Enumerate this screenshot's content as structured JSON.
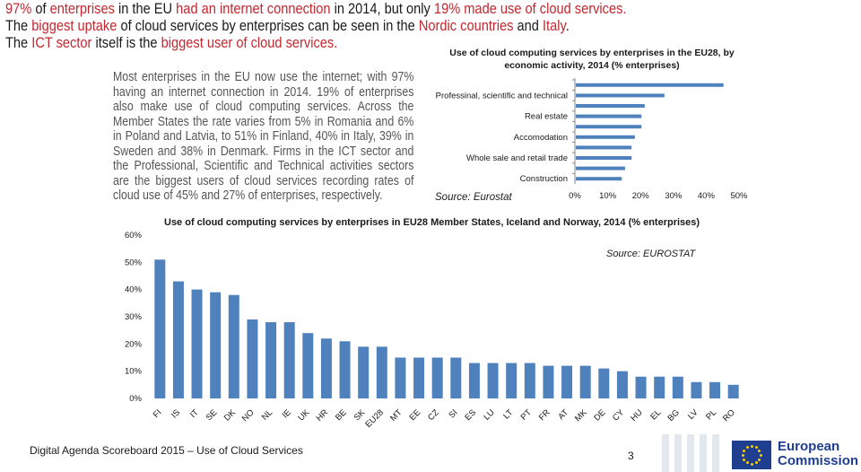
{
  "header": {
    "line1": [
      {
        "text": "97%",
        "highlight": true
      },
      {
        "text": " of ",
        "highlight": false
      },
      {
        "text": "enterprises",
        "highlight": true
      },
      {
        "text": " in the EU ",
        "highlight": false
      },
      {
        "text": "had an internet connection",
        "highlight": true
      },
      {
        "text": " in 2014, but only ",
        "highlight": false
      },
      {
        "text": "19% made use of cloud services.",
        "highlight": true
      }
    ],
    "line2": [
      {
        "text": "The ",
        "highlight": false
      },
      {
        "text": "biggest uptake",
        "highlight": true
      },
      {
        "text": " of cloud services by enterprises can be seen in the ",
        "highlight": false
      },
      {
        "text": "Nordic countries",
        "highlight": true
      },
      {
        "text": " and ",
        "highlight": false
      },
      {
        "text": "Italy",
        "highlight": true
      },
      {
        "text": ".",
        "highlight": false
      }
    ],
    "line3": [
      {
        "text": "The ",
        "highlight": false
      },
      {
        "text": "ICT sector",
        "highlight": true
      },
      {
        "text": " itself is the ",
        "highlight": false
      },
      {
        "text": "biggest user of cloud services.",
        "highlight": true
      }
    ]
  },
  "intro_text": "Most enterprises in the EU now use the internet; with 97% having an internet connection in 2014. 19% of enterprises also make use of cloud computing services. Across the Member States the rate varies from 5% in Romania and 6% in Poland and Latvia, to 51% in Finland, 40% in Italy, 39% in Sweden and 38% in Denmark. Firms in the ICT sector and the Professional, Scientific and Technical activities sectors are the biggest users of cloud services recording rates of cloud use of 45% and 27% of enterprises, respectively.",
  "chart_data": [
    {
      "type": "bar",
      "orientation": "horizontal",
      "title": "Use of cloud computing services by enterprises in the EU28, by economic activity, 2014 (% enterprises)",
      "source": "Source: Eurostat",
      "categories": [
        "",
        "Professinal, scientific and technical",
        "",
        "Real estate",
        "",
        "Accomodation",
        "",
        "Whole sale and retail trade",
        "",
        "Construction"
      ],
      "values": [
        45,
        27,
        21,
        20,
        20,
        18,
        17,
        17,
        15,
        14
      ],
      "xlim": [
        0,
        50
      ],
      "xticks": [
        "0%",
        "10%",
        "20%",
        "30%",
        "40%",
        "50%"
      ],
      "bar_color": "#4f81bd"
    },
    {
      "type": "bar",
      "orientation": "vertical",
      "title": "Use of cloud computing services by enterprises in EU28 Member States, Iceland and Norway, 2014 (% enterprises)",
      "source": "Source: EUROSTAT",
      "categories": [
        "FI",
        "IS",
        "IT",
        "SE",
        "DK",
        "NO",
        "NL",
        "IE",
        "UK",
        "HR",
        "BE",
        "SK",
        "EU28",
        "MT",
        "EE",
        "CZ",
        "SI",
        "ES",
        "LU",
        "LT",
        "PT",
        "FR",
        "AT",
        "MK",
        "DE",
        "CY",
        "HU",
        "EL",
        "BG",
        "LV",
        "PL",
        "RO"
      ],
      "values": [
        51,
        43,
        40,
        39,
        38,
        29,
        28,
        28,
        24,
        22,
        21,
        19,
        19,
        15,
        15,
        15,
        15,
        13,
        13,
        13,
        13,
        12,
        12,
        12,
        11,
        10,
        8,
        8,
        8,
        6,
        6,
        5
      ],
      "ylim": [
        0,
        60
      ],
      "yticks": [
        "0%",
        "10%",
        "20%",
        "30%",
        "40%",
        "50%",
        "60%"
      ],
      "bar_color": "#4f81bd"
    }
  ],
  "footer": {
    "text": "Digital Agenda Scoreboard 2015 – Use of Cloud Services",
    "page_number": "3",
    "logo_line1": "European",
    "logo_line2": "Commission"
  }
}
